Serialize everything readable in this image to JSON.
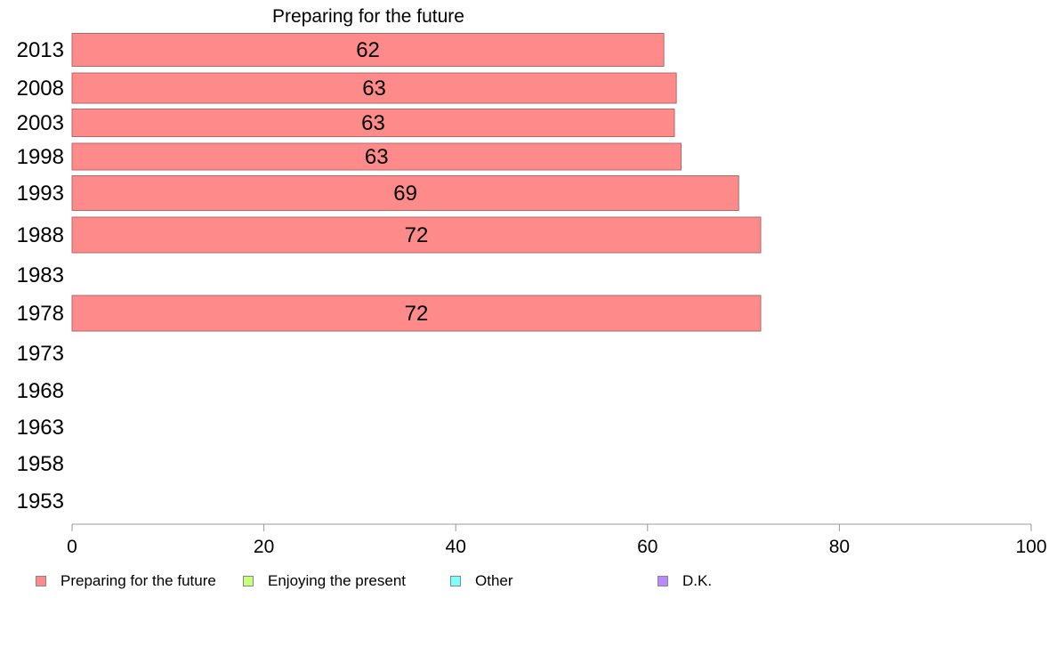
{
  "chart_data": {
    "type": "bar",
    "orientation": "horizontal",
    "title": "Preparing for the future",
    "categories": [
      "2013",
      "2008",
      "2003",
      "1998",
      "1993",
      "1988",
      "1983",
      "1978",
      "1973",
      "1968",
      "1963",
      "1958",
      "1953"
    ],
    "series": [
      {
        "name": "Preparing for the future",
        "color": "#ff8a8a",
        "values": [
          61.7,
          63.0,
          62.8,
          63.5,
          69.5,
          71.8,
          null,
          71.8,
          null,
          null,
          null,
          null,
          null
        ],
        "labels": [
          "62",
          "63",
          "63",
          "63",
          "69",
          "72",
          "",
          "72",
          "",
          "",
          "",
          "",
          ""
        ]
      }
    ],
    "xlim": [
      0,
      100
    ],
    "xticks": [
      "0",
      "20",
      "40",
      "60",
      "80",
      "100"
    ],
    "grid": false,
    "legend": {
      "placement": "bottom",
      "entries": [
        {
          "label": "Preparing for the future",
          "color": "#ff8a8a"
        },
        {
          "label": "Enjoying the present",
          "color": "#c6ff80"
        },
        {
          "label": "Other",
          "color": "#80ffff"
        },
        {
          "label": "D.K.",
          "color": "#bb88ff"
        }
      ]
    }
  }
}
